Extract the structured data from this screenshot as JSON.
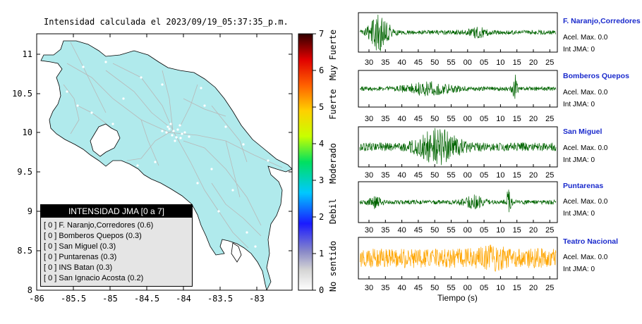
{
  "map": {
    "title": "Intensidad calculada el 2023/09/19_05:37:35_p.m.",
    "lon_ticks": [
      "-86",
      "-85.5",
      "-85",
      "-84.5",
      "-84",
      "-83.5",
      "-83"
    ],
    "lat_ticks": [
      "8",
      "8.5",
      "9",
      "9.5",
      "10",
      "10.5",
      "11"
    ],
    "land_color": "#b0eaec",
    "road_color": "#b8b8b8"
  },
  "colorbar": {
    "ticks": [
      "0",
      "1",
      "2",
      "3",
      "4",
      "5",
      "6",
      "7"
    ],
    "labels": [
      "No sentido",
      "Debil",
      "Moderado",
      "Fuerte",
      "Muy Fuerte"
    ]
  },
  "legend": {
    "title": "INTENSIDAD JMA [0 a 7]",
    "rows": [
      "[ 0 ]  F. Naranjo,Corredores (0.6)",
      "[ 0 ]  Bomberos Quepos (0.3)",
      "[ 0 ]  San Miguel (0.3)",
      "[ 0 ]  Puntarenas (0.3)",
      "[ 0 ]  INS Batan (0.3)",
      "[ 0 ]  San Ignacio Acosta (0.2)"
    ]
  },
  "chart_data": {
    "type": "line",
    "xlabel": "Tiempo (s)",
    "x_ticks": [
      "30",
      "35",
      "40",
      "45",
      "50",
      "55",
      "00",
      "05",
      "10",
      "15",
      "20",
      "25"
    ],
    "series": [
      {
        "name": "F. Naranjo,Corredores",
        "acel_label": "Acel. Max. 0.0",
        "jma_label": "Int JMA: 0",
        "color": "#006400"
      },
      {
        "name": "Bomberos Quepos",
        "acel_label": "Acel. Max. 0.0",
        "jma_label": "Int JMA: 0",
        "color": "#006400"
      },
      {
        "name": "San Miguel",
        "acel_label": "Acel. Max. 0.0",
        "jma_label": "Int JMA: 0",
        "color": "#006400"
      },
      {
        "name": "Puntarenas",
        "acel_label": "Acel. Max. 0.0",
        "jma_label": "Int JMA: 0",
        "color": "#006400"
      },
      {
        "name": "Teatro Nacional",
        "acel_label": "Acel. Max. 0.0",
        "jma_label": "Int JMA: 0",
        "color": "#ffa500"
      }
    ]
  }
}
